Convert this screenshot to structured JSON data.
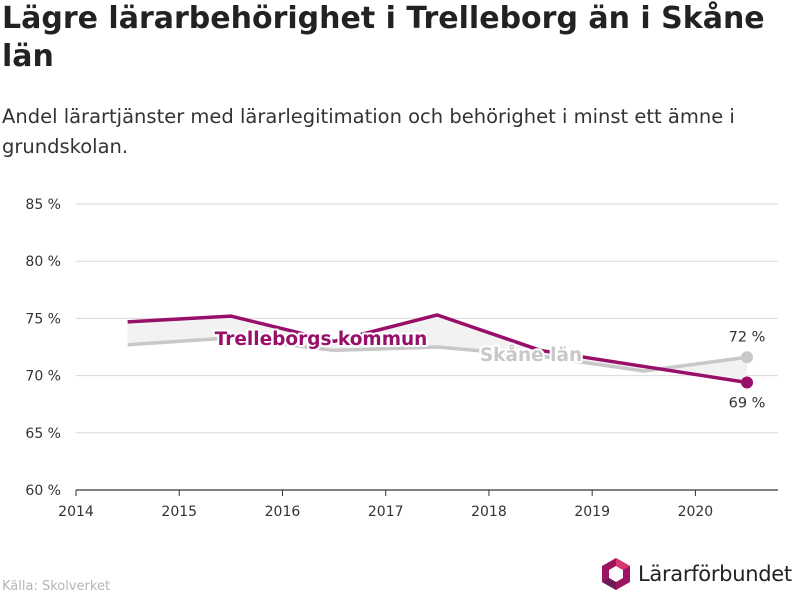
{
  "title": "Lägre lärarbehörighet i Trelleborg än i Skåne län",
  "subtitle": "Andel lärartjänster med lärarlegitimation och behörighet i minst ett ämne i grundskolan.",
  "source": "Källa: Skolverket",
  "brand": {
    "name": "Lärarförbundet",
    "icon": "hexagon-logo-icon",
    "colors": [
      "#9b1560",
      "#d9366e",
      "#6b1c56"
    ]
  },
  "colors": {
    "trelleborg": "#980f6a",
    "skane": "#c8c8c8",
    "band": "#f2f2f2",
    "grid": "#d9d9d9",
    "axis": "#333333"
  },
  "chart_data": {
    "type": "line",
    "x_ticks": [
      "2014",
      "2015",
      "2016",
      "2017",
      "2018",
      "2019",
      "2020"
    ],
    "y_ticks": [
      "60 %",
      "65 %",
      "70 %",
      "75 %",
      "80 %",
      "85 %"
    ],
    "ylim": [
      60,
      85
    ],
    "xlim": [
      2014,
      2020.8
    ],
    "series": [
      {
        "key": "trelleborg",
        "name": "Trelleborgs kommun",
        "x": [
          2014.5,
          2015.5,
          2016.5,
          2017.5,
          2018.5,
          2019.5,
          2020.5
        ],
        "values": [
          74.7,
          75.2,
          73.0,
          75.3,
          72.2,
          70.8,
          69.4
        ],
        "end_label": "69 %"
      },
      {
        "key": "skane",
        "name": "Skåne län",
        "x": [
          2014.5,
          2015.5,
          2016.5,
          2017.5,
          2018.5,
          2019.5,
          2020.5
        ],
        "values": [
          72.7,
          73.3,
          72.2,
          72.5,
          71.7,
          70.4,
          71.6
        ],
        "end_label": "72 %"
      }
    ]
  }
}
